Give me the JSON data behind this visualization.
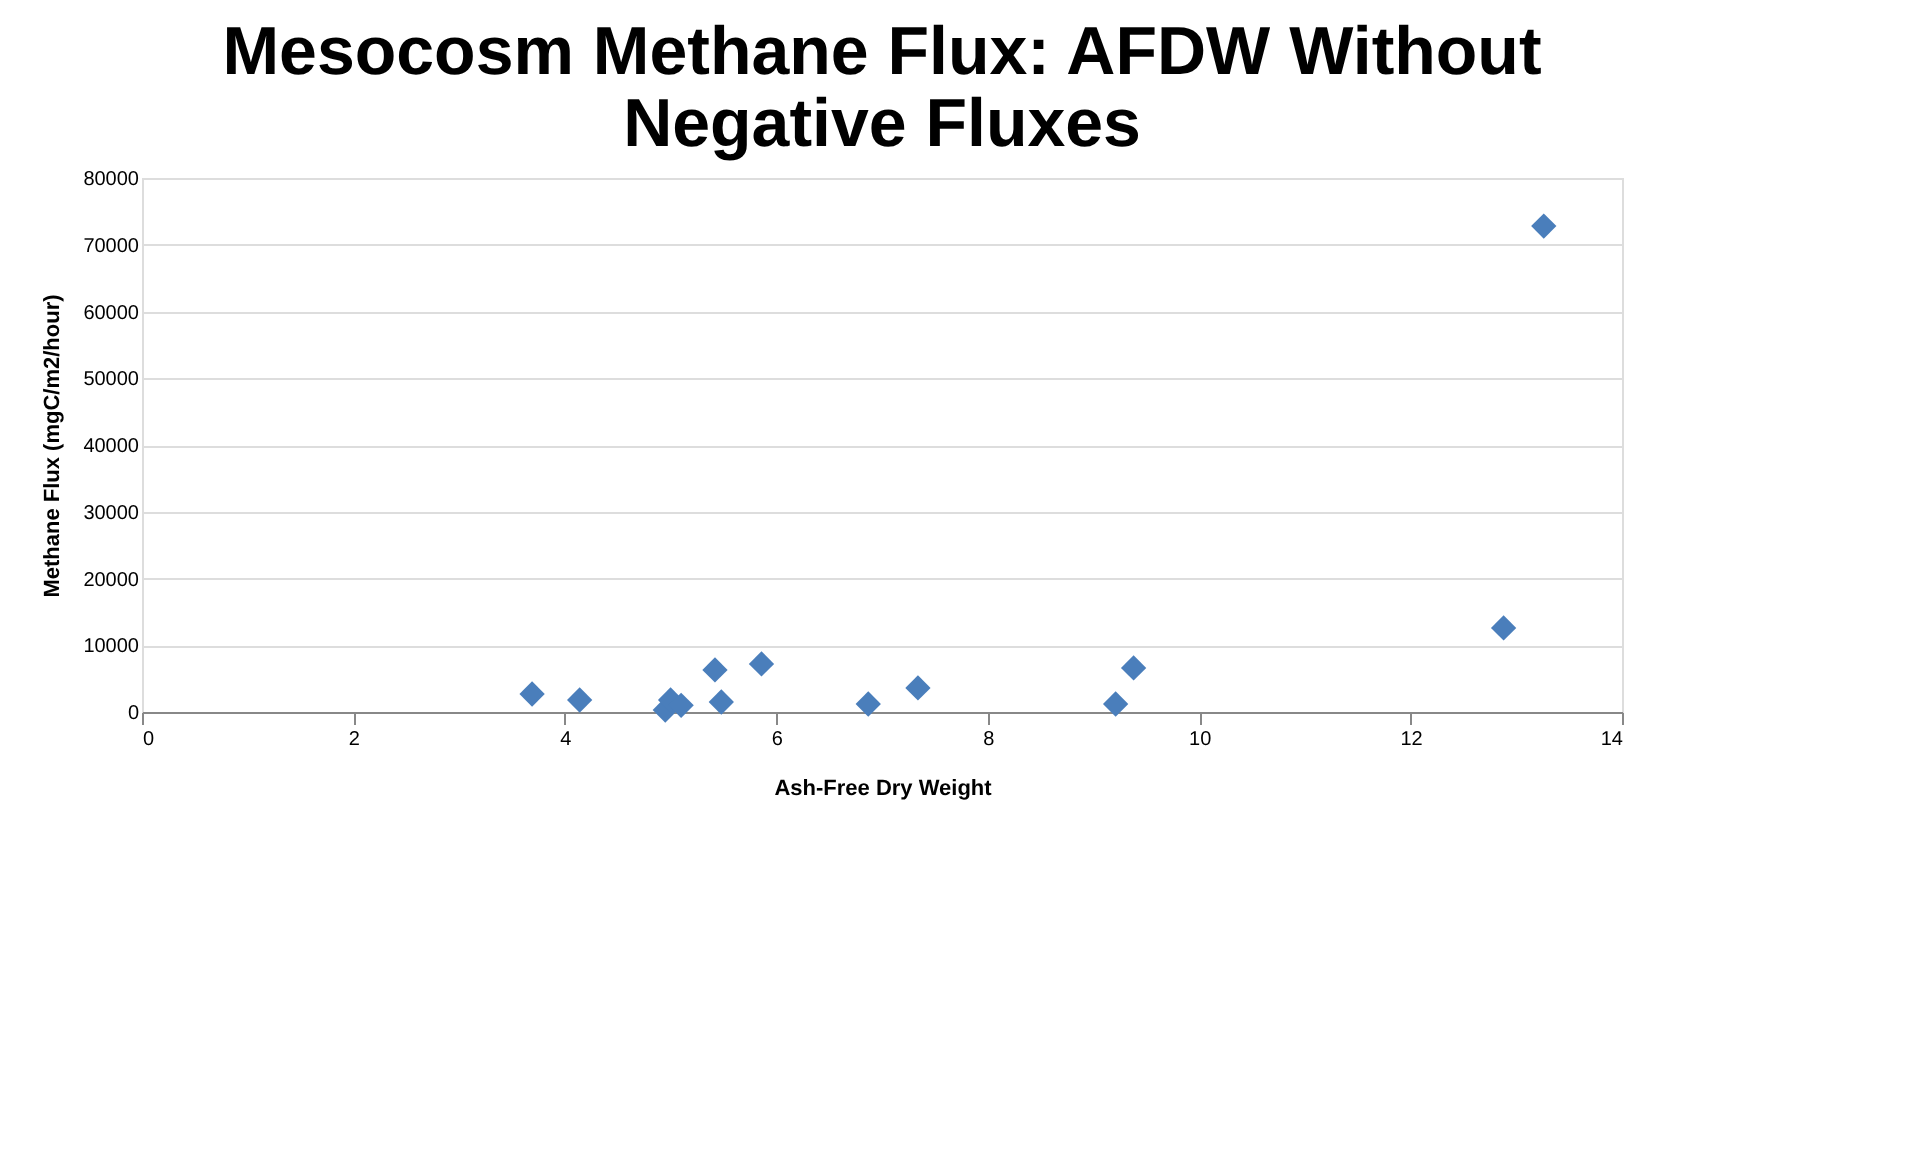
{
  "chart_data": {
    "type": "scatter",
    "title": "Mesocosm Methane Flux: AFDW Without Negative Fluxes",
    "xlabel": "Ash-Free Dry Weight",
    "ylabel": "Methane Flux (mgC/m2/hour)",
    "x": [
      3.69,
      4.14,
      4.95,
      5.0,
      5.1,
      5.42,
      5.48,
      5.86,
      6.87,
      7.34,
      9.21,
      9.38,
      12.88,
      13.26
    ],
    "series": [
      {
        "color": "#4a7ebb",
        "values": [
          2700,
          1800,
          300,
          1800,
          1000,
          6300,
          1500,
          7200,
          1200,
          3600,
          1200,
          6600,
          12600,
          72800
        ]
      }
    ],
    "xlim": [
      0,
      14
    ],
    "xticks": [
      0,
      2,
      4,
      6,
      8,
      10,
      12,
      14
    ],
    "ylim": [
      0,
      80000
    ],
    "yticks": [
      0,
      10000,
      20000,
      30000,
      40000,
      50000,
      60000,
      70000,
      80000
    ],
    "grid": "y",
    "marker": "diamond",
    "legend": false
  }
}
